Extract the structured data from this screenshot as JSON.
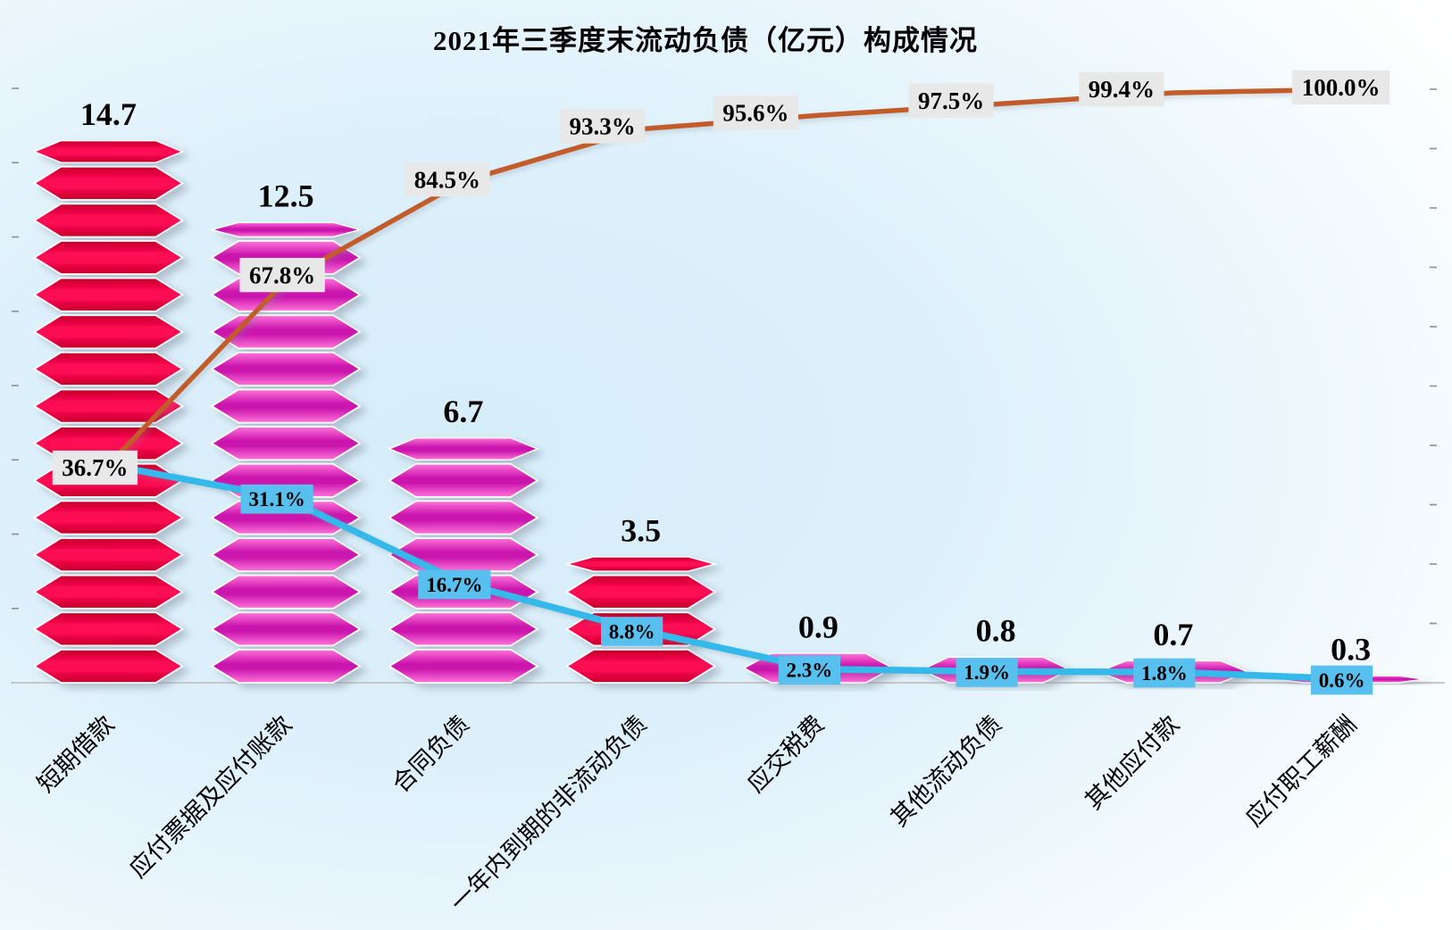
{
  "chart_data": {
    "type": "bar",
    "subtype": "pareto-combo (picture-stack bars + two percentage lines)",
    "title": "2021年三季度末流动负债（亿元）构成情况",
    "categories": [
      "短期借款",
      "应付票据及应付账款",
      "合同负债",
      "一年内到期的非流动负债",
      "应交税费",
      "其他流动负债",
      "其他应付款",
      "应付职工薪酬"
    ],
    "bars": {
      "values": [
        14.7,
        12.5,
        6.7,
        3.5,
        0.9,
        0.8,
        0.7,
        0.3
      ],
      "labels": [
        "14.7",
        "12.5",
        "6.7",
        "3.5",
        "0.9",
        "0.8",
        "0.7",
        "0.3"
      ],
      "styles": [
        "crimson",
        "pink",
        "pink",
        "crimson",
        "pink",
        "pink",
        "pink",
        "pink"
      ]
    },
    "series": [
      {
        "id": "share_line",
        "values": [
          36.7,
          31.1,
          16.7,
          8.8,
          2.3,
          1.9,
          1.8,
          0.6
        ],
        "labels": [
          null,
          "31.1%",
          "16.7%",
          "8.8%",
          "2.3%",
          "1.9%",
          "1.8%",
          "0.6%"
        ],
        "color": "#35b9ea",
        "label_bg": "#57c0ee"
      },
      {
        "id": "cumulative_line",
        "values": [
          36.7,
          67.8,
          84.5,
          93.3,
          95.6,
          97.5,
          99.4,
          100.0
        ],
        "labels": [
          "36.7%",
          "67.8%",
          "84.5%",
          "93.3%",
          "95.6%",
          "97.5%",
          "99.4%",
          "100.0%"
        ],
        "color": "#c25c29",
        "label_bg": "#e8e8e8"
      }
    ],
    "left_axis": {
      "min": 0,
      "max": 16,
      "tick_step": 2,
      "tick_labels_visible": false
    },
    "right_axis": {
      "min": 0,
      "max": 100,
      "tick_step": 10,
      "tick_labels_visible": false
    },
    "grid": false,
    "legend": "none",
    "colors": {
      "crimson_edge": "#c30029",
      "crimson_core": "#fd0853",
      "pink_edge": "#ff74d9",
      "pink_core": "#cb16ae",
      "axis_line": "#c8c8c8",
      "tick": "#8f8f8f",
      "label_text": "#000000"
    },
    "layout": {
      "cumulative_label_dx": [
        -15,
        -4,
        -18,
        -43,
        -70,
        -50,
        -58,
        -11
      ],
      "cumulative_label_dy": [
        3,
        -6,
        -2,
        -3,
        -3,
        -4,
        -4,
        -2
      ],
      "share_label_dx": -10,
      "share_label_dy": 1
    }
  }
}
